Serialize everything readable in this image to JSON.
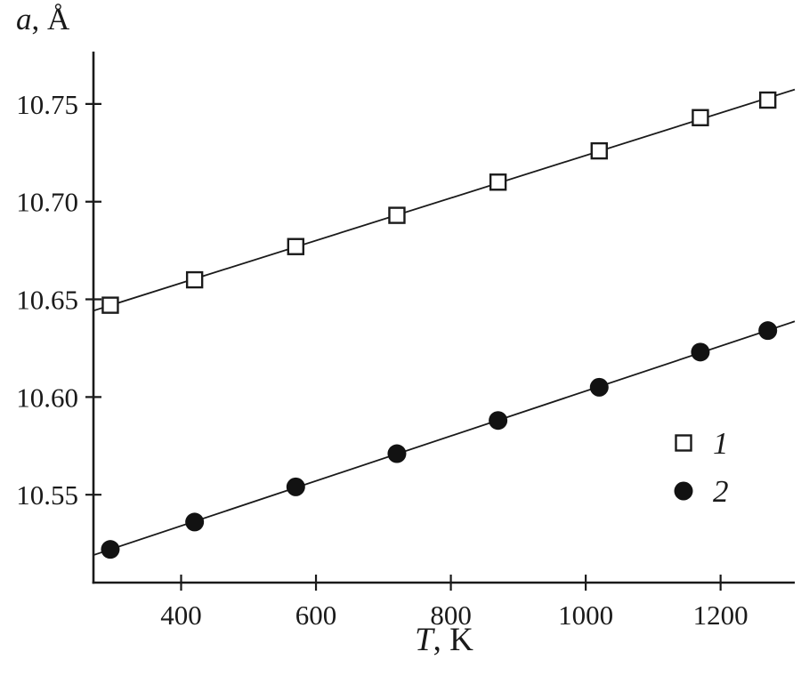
{
  "figure": {
    "background": "#ffffff",
    "axis_color": "#1a1a1a",
    "marker_fill": "#121212"
  },
  "chart_data": {
    "type": "scatter",
    "title": "",
    "xlabel": "T, K",
    "ylabel": "a, Å",
    "xlabel_parts": {
      "symbol": "T",
      "rest": ", K"
    },
    "ylabel_parts": {
      "symbol": "a",
      "rest": ", Å"
    },
    "xlim": [
      270,
      1310
    ],
    "ylim": [
      10.505,
      10.775
    ],
    "x_ticks": [
      400,
      600,
      800,
      1000,
      1200
    ],
    "y_ticks": [
      10.55,
      10.6,
      10.65,
      10.7,
      10.75
    ],
    "y_tick_decimals": 2,
    "grid": false,
    "legend": {
      "position": "lower-right",
      "entries": [
        {
          "label": "1",
          "marker": "open-square"
        },
        {
          "label": "2",
          "marker": "filled-circle"
        }
      ]
    },
    "series": [
      {
        "name": "1",
        "marker": "open-square",
        "line": "linear-fit",
        "x": [
          295,
          420,
          570,
          720,
          870,
          1020,
          1170,
          1270
        ],
        "y": [
          10.647,
          10.66,
          10.677,
          10.693,
          10.71,
          10.726,
          10.743,
          10.752
        ]
      },
      {
        "name": "2",
        "marker": "filled-circle",
        "line": "linear-fit",
        "x": [
          295,
          420,
          570,
          720,
          870,
          1020,
          1170,
          1270
        ],
        "y": [
          10.522,
          10.536,
          10.554,
          10.571,
          10.588,
          10.605,
          10.623,
          10.634
        ]
      }
    ]
  }
}
